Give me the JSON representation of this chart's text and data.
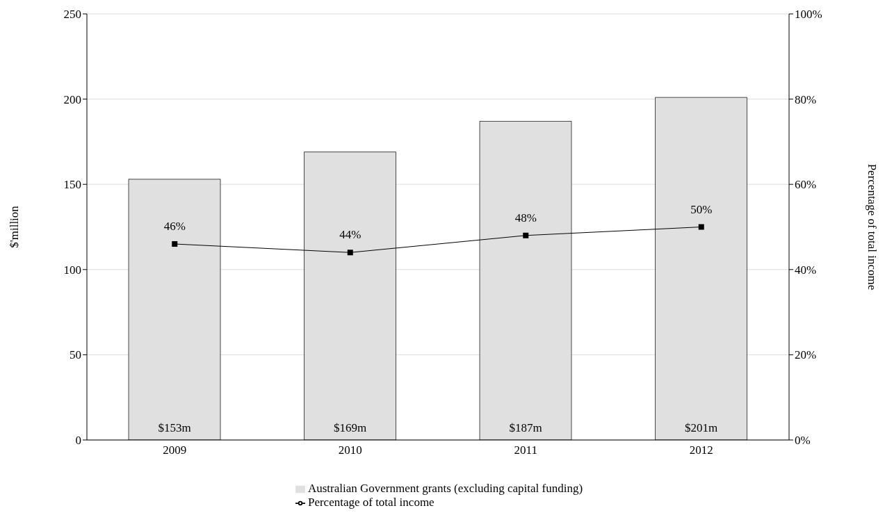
{
  "chart_data": {
    "type": "bar",
    "categories": [
      "2009",
      "2010",
      "2011",
      "2012"
    ],
    "ylabel": "$'million",
    "y2label": "Percentage of total income",
    "ylim": [
      0,
      250
    ],
    "yticks": [
      0,
      50,
      100,
      150,
      200,
      250
    ],
    "y2lim": [
      0,
      100
    ],
    "y2ticks": [
      {
        "value": 0,
        "label": "0%"
      },
      {
        "value": 20,
        "label": "20%"
      },
      {
        "value": 40,
        "label": "40%"
      },
      {
        "value": 60,
        "label": "60%"
      },
      {
        "value": 80,
        "label": "80%"
      },
      {
        "value": 100,
        "label": "100%"
      }
    ],
    "grid": "y",
    "legend": "bottom",
    "series": [
      {
        "name": "Australian Government grants (excluding capital funding)",
        "color": "#e0e0e0",
        "values": [
          153,
          169,
          187,
          201
        ],
        "value_labels": [
          "$153m",
          "$169m",
          "$187m",
          "$201m"
        ]
      },
      {
        "name": "Percentage of total income",
        "type": "line",
        "axis": "y2",
        "color": "#000000",
        "marker": "square",
        "values": [
          46,
          44,
          48,
          50
        ],
        "value_labels": [
          "46%",
          "44%",
          "48%",
          "50%"
        ]
      }
    ]
  }
}
